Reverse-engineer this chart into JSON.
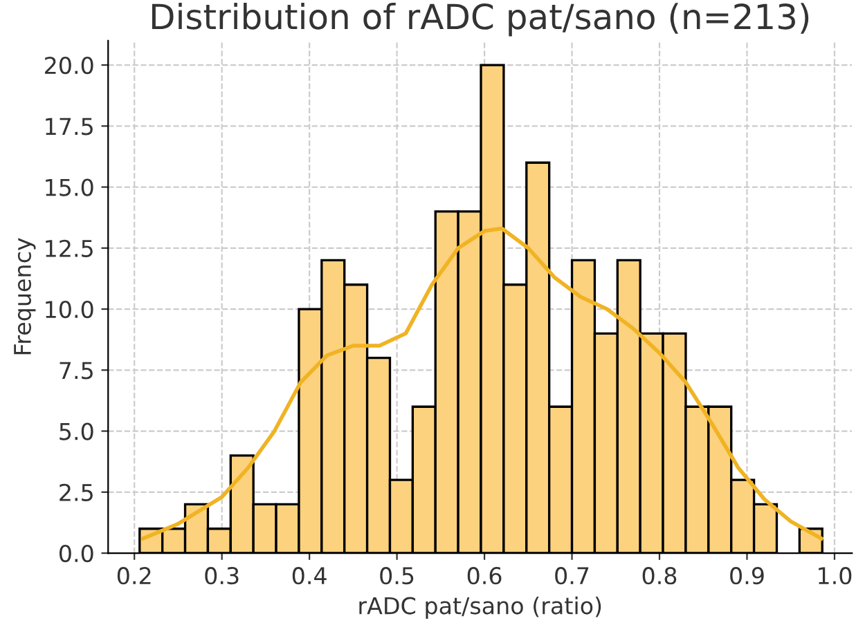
{
  "chart_data": {
    "type": "histogram",
    "title": "Distribution of rADC pat/sano (n=213)",
    "xlabel": "rADC pat/sano (ratio)",
    "ylabel": "Frequency",
    "bins": [
      0.206,
      0.232,
      0.258,
      0.284,
      0.31,
      0.336,
      0.362,
      0.388,
      0.414,
      0.44,
      0.466,
      0.492,
      0.518,
      0.544,
      0.57,
      0.596,
      0.622,
      0.648,
      0.674,
      0.7,
      0.726,
      0.752,
      0.778,
      0.804,
      0.83,
      0.856,
      0.882,
      0.908,
      0.934,
      0.96,
      0.986
    ],
    "series": [
      {
        "color": "#fdd27e",
        "values": [
          1,
          1,
          2,
          1,
          4,
          2,
          2,
          10,
          12,
          11,
          8,
          3,
          6,
          14,
          14,
          20,
          11,
          16,
          6,
          12,
          9,
          12,
          9,
          9,
          6,
          6,
          3,
          2,
          0,
          1
        ]
      },
      {
        "type": "line",
        "color": "#f0b323",
        "x": [
          0.21,
          0.25,
          0.3,
          0.33,
          0.36,
          0.39,
          0.42,
          0.45,
          0.48,
          0.51,
          0.54,
          0.57,
          0.6,
          0.62,
          0.65,
          0.68,
          0.71,
          0.74,
          0.77,
          0.8,
          0.83,
          0.86,
          0.89,
          0.92,
          0.95,
          0.985
        ],
        "values": [
          0.6,
          1.2,
          2.3,
          3.5,
          5,
          7,
          8.1,
          8.5,
          8.5,
          9,
          11,
          12.5,
          13.2,
          13.3,
          12.5,
          11.3,
          10.5,
          10,
          9.2,
          8.2,
          7,
          5.3,
          3.5,
          2.2,
          1.3,
          0.6
        ]
      }
    ],
    "xlim": [
      0.17,
      1.02
    ],
    "ylim": [
      0,
      21
    ],
    "xticks": [
      {
        "value": 0.2,
        "label": "0.2"
      },
      {
        "value": 0.3,
        "label": "0.3"
      },
      {
        "value": 0.4,
        "label": "0.4"
      },
      {
        "value": 0.5,
        "label": "0.5"
      },
      {
        "value": 0.6,
        "label": "0.6"
      },
      {
        "value": 0.7,
        "label": "0.7"
      },
      {
        "value": 0.8,
        "label": "0.8"
      },
      {
        "value": 0.9,
        "label": "0.9"
      },
      {
        "value": 1.0,
        "label": "1.0"
      }
    ],
    "yticks": [
      {
        "value": 0,
        "label": "0.0"
      },
      {
        "value": 2.5,
        "label": "2.5"
      },
      {
        "value": 5,
        "label": "5.0"
      },
      {
        "value": 7.5,
        "label": "7.5"
      },
      {
        "value": 10,
        "label": "10.0"
      },
      {
        "value": 12.5,
        "label": "12.5"
      },
      {
        "value": 15,
        "label": "15.0"
      },
      {
        "value": 17.5,
        "label": "17.5"
      },
      {
        "value": 20,
        "label": "20.0"
      }
    ],
    "grid": true
  }
}
